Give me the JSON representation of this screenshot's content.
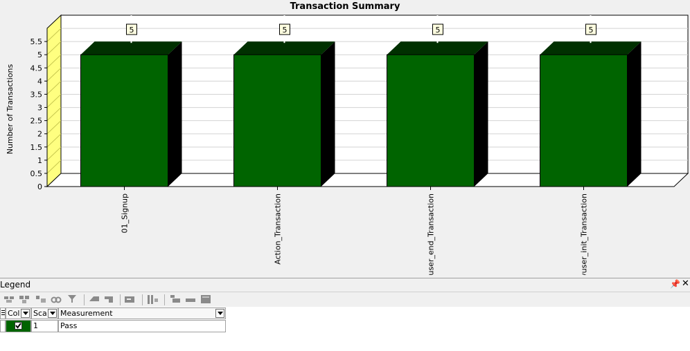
{
  "chart_data": {
    "type": "bar",
    "title": "Transaction Summary",
    "xlabel": "",
    "ylabel": "Number of Transactions",
    "categories": [
      "01_Signup",
      "Action_Transaction",
      "vuser_end_Transaction",
      "vuser_init_Transaction"
    ],
    "series": [
      {
        "name": "Pass",
        "values": [
          5,
          5,
          5,
          5
        ]
      }
    ],
    "data_labels": [
      "5",
      "5",
      "5",
      "5"
    ],
    "yticks": [
      "0",
      "0.5",
      "1",
      "1.5",
      "2",
      "2.5",
      "3",
      "3.5",
      "4",
      "4.5",
      "5",
      "5.5"
    ],
    "ylim": [
      0,
      6
    ],
    "grid": true,
    "style": "3d",
    "colors": {
      "bar_front": "#006400",
      "bar_top": "#003000",
      "bar_side": "#000000",
      "left_wall": "#ffff80",
      "grid": "#d3d3d3"
    }
  },
  "legend": {
    "title": "Legend",
    "columns": [
      "Col",
      "Sca",
      "Measurement"
    ],
    "rows": [
      {
        "color": "#006400",
        "checked": true,
        "scale": "1",
        "measurement": "Pass"
      }
    ]
  },
  "icons": {
    "pin": "pin-icon",
    "close": "close-icon"
  }
}
